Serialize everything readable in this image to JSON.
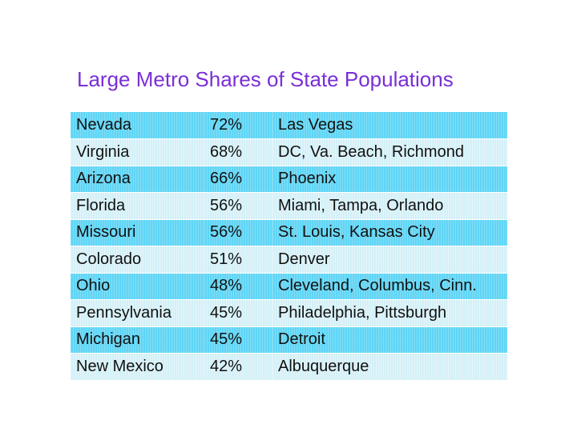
{
  "title": "Large Metro Shares of State Populations",
  "rows": [
    {
      "state": "Nevada",
      "share": "72%",
      "metros": "Las Vegas"
    },
    {
      "state": "Virginia",
      "share": "68%",
      "metros": "DC, Va. Beach, Richmond"
    },
    {
      "state": "Arizona",
      "share": "66%",
      "metros": "Phoenix"
    },
    {
      "state": "Florida",
      "share": "56%",
      "metros": "Miami, Tampa, Orlando"
    },
    {
      "state": "Missouri",
      "share": "56%",
      "metros": "St. Louis, Kansas City"
    },
    {
      "state": "Colorado",
      "share": "51%",
      "metros": "Denver"
    },
    {
      "state": "Ohio",
      "share": "48%",
      "metros": "Cleveland, Columbus, Cinn."
    },
    {
      "state": "Pennsylvania",
      "share": "45%",
      "metros": "Philadelphia, Pittsburgh"
    },
    {
      "state": "Michigan",
      "share": "45%",
      "metros": "Detroit"
    },
    {
      "state": "New Mexico",
      "share": "42%",
      "metros": "Albuquerque"
    }
  ],
  "colors": {
    "title": "#7a2fd6",
    "row_odd": "#5fd5f5",
    "row_even": "#d4f0f7",
    "text": "#111111"
  }
}
